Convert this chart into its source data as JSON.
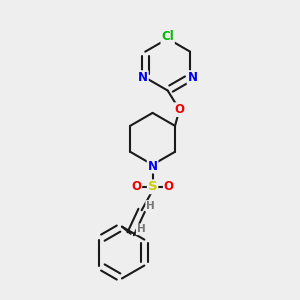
{
  "background_color": "#eeeeee",
  "bond_color": "#1a1a1a",
  "atom_colors": {
    "N": "#0000ee",
    "O": "#ee0000",
    "S": "#cccc00",
    "Cl": "#00bb00",
    "H": "#777777",
    "C": "#1a1a1a"
  },
  "figsize": [
    3.0,
    3.0
  ],
  "dpi": 100
}
